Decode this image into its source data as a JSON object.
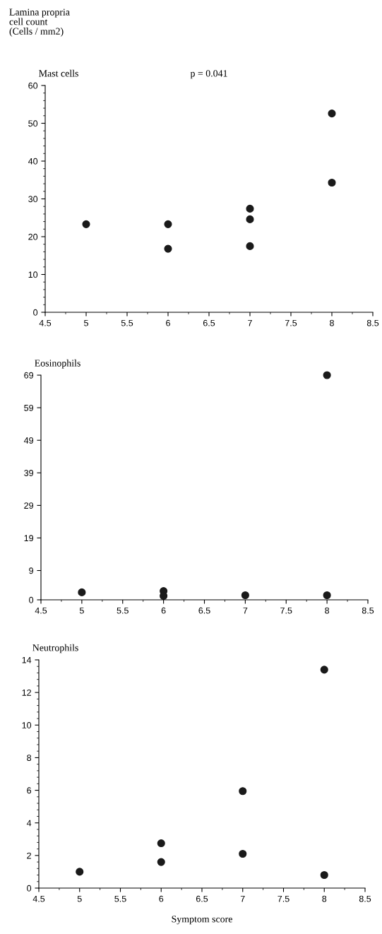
{
  "chart_data": [
    {
      "type": "scatter",
      "title": "Mast cells",
      "ylabel": "Lamina propria\ncell count\n(Cells / mm2)",
      "annotations": [
        "p = 0.041"
      ],
      "series": [
        {
          "color": "#1a1a1a",
          "x": [
            5,
            6,
            6,
            7,
            7,
            7,
            8,
            8
          ],
          "values": [
            23.3,
            23.3,
            16.8,
            27.4,
            24.6,
            17.5,
            52.6,
            34.3
          ]
        }
      ],
      "xlim": [
        4.5,
        8.5
      ],
      "xticks": [
        4.5,
        5,
        5.5,
        6,
        6.5,
        7,
        7.5,
        8,
        8.5
      ],
      "ylim": [
        0,
        60
      ],
      "yticks": [
        0,
        10,
        20,
        30,
        40,
        50,
        60
      ],
      "marker": "circle",
      "grid": false,
      "legend": false
    },
    {
      "type": "scatter",
      "title": "Eosinophils",
      "series": [
        {
          "color": "#1a1a1a",
          "x": [
            5,
            6,
            6,
            7,
            8,
            8
          ],
          "values": [
            2.3,
            2.7,
            1.2,
            1.4,
            1.4,
            69
          ]
        }
      ],
      "xlim": [
        4.5,
        8.5
      ],
      "xticks": [
        4.5,
        5,
        5.5,
        6,
        6.5,
        7,
        7.5,
        8,
        8.5
      ],
      "ylim": [
        0,
        69
      ],
      "yticks": [
        0,
        9,
        19,
        29,
        39,
        49,
        59,
        69
      ],
      "marker": "circle",
      "grid": false,
      "legend": false
    },
    {
      "type": "scatter",
      "title": "Neutrophils",
      "xlabel": "Symptom score",
      "series": [
        {
          "color": "#1a1a1a",
          "x": [
            5,
            6,
            6,
            7,
            7,
            8,
            8
          ],
          "values": [
            1.0,
            2.75,
            1.6,
            5.95,
            2.1,
            13.4,
            0.8
          ]
        }
      ],
      "xlim": [
        4.5,
        8.5
      ],
      "xticks": [
        4.5,
        5,
        5.5,
        6,
        6.5,
        7,
        7.5,
        8,
        8.5
      ],
      "ylim": [
        0,
        14
      ],
      "yticks": [
        0,
        2,
        4,
        6,
        8,
        10,
        12,
        14
      ],
      "marker": "circle",
      "grid": false,
      "legend": false
    }
  ]
}
